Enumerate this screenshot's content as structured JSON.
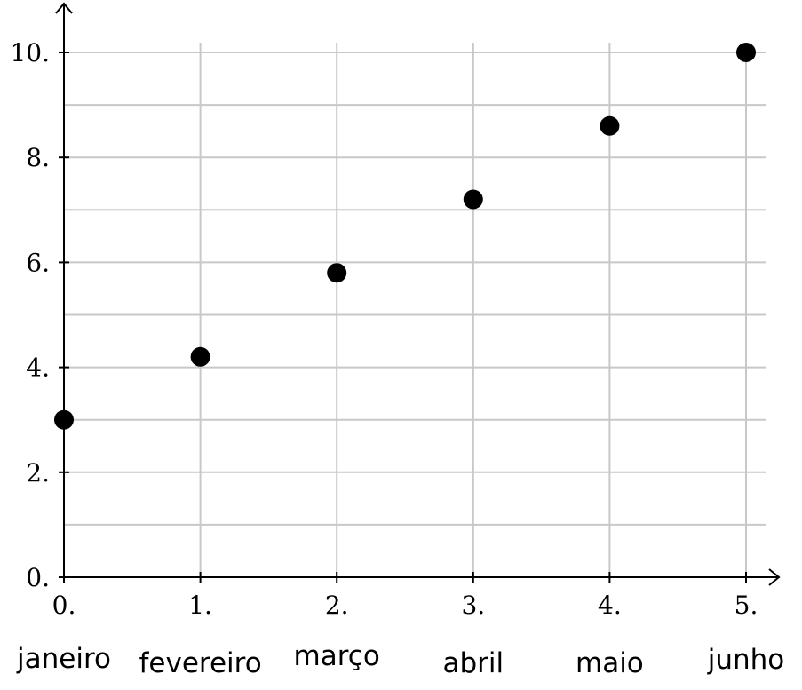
{
  "chart_data": {
    "type": "scatter",
    "x": [
      0,
      1,
      2,
      3,
      4,
      5
    ],
    "y": [
      3,
      4.2,
      5.8,
      7.2,
      8.6,
      10
    ],
    "x_ticks": [
      {
        "value": 0,
        "label": "0."
      },
      {
        "value": 1,
        "label": "1."
      },
      {
        "value": 2,
        "label": "2."
      },
      {
        "value": 3,
        "label": "3."
      },
      {
        "value": 4,
        "label": "4."
      },
      {
        "value": 5,
        "label": "5."
      }
    ],
    "y_ticks": [
      {
        "value": 0,
        "label": "0."
      },
      {
        "value": 2,
        "label": "2."
      },
      {
        "value": 4,
        "label": "4."
      },
      {
        "value": 6,
        "label": "6."
      },
      {
        "value": 8,
        "label": "8."
      },
      {
        "value": 10,
        "label": "10."
      }
    ],
    "category_labels": [
      "janeiro",
      "fevereiro",
      "março",
      "abril",
      "maio",
      "junho"
    ],
    "xlim": [
      0,
      5.2
    ],
    "ylim": [
      0,
      10.9
    ],
    "grid": true,
    "y_minor_grid_step": 1,
    "marker_color": "#000000",
    "grid_color": "#c8c8c8"
  }
}
